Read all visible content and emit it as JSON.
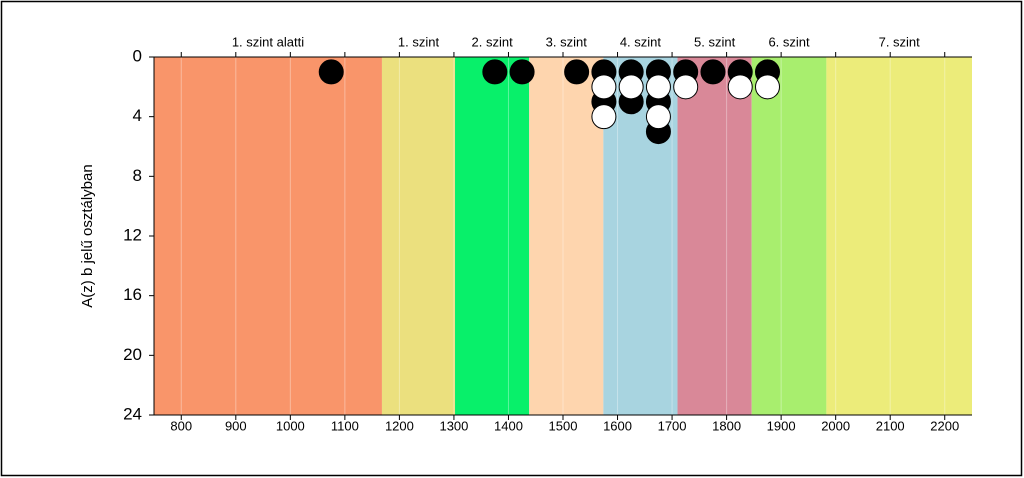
{
  "chart_data": {
    "type": "dot",
    "y_label": "A(z) b jelű osztályban",
    "xlim": [
      750,
      2250
    ],
    "ylim": [
      0,
      24
    ],
    "xticks": [
      800,
      900,
      1000,
      1100,
      1200,
      1300,
      1400,
      1500,
      1600,
      1700,
      1800,
      1900,
      2000,
      2100,
      2200
    ],
    "yticks": [
      0,
      4,
      8,
      12,
      16,
      20,
      24
    ],
    "y_inverted": true,
    "bands": [
      {
        "label": "1. szint alatti",
        "from": 750,
        "to": 1168,
        "color": "#f9956a"
      },
      {
        "label": "1. szint",
        "from": 1168,
        "to": 1302,
        "color": "#ebe07e"
      },
      {
        "label": "2. szint",
        "from": 1302,
        "to": 1438,
        "color": "#08f06a"
      },
      {
        "label": "3. szint",
        "from": 1438,
        "to": 1574,
        "color": "#fed5ae"
      },
      {
        "label": "4. szint",
        "from": 1574,
        "to": 1710,
        "color": "#a8d4e0"
      },
      {
        "label": "5. szint",
        "from": 1710,
        "to": 1846,
        "color": "#d98898"
      },
      {
        "label": "6. szint",
        "from": 1846,
        "to": 1983,
        "color": "#a8ee6e"
      },
      {
        "label": "7. szint",
        "from": 1983,
        "to": 2250,
        "color": "#ecec7a"
      }
    ],
    "series": [
      {
        "color": "#000000",
        "x": [
          1075,
          1375,
          1425,
          1525,
          1575,
          1575,
          1625,
          1625,
          1675,
          1675,
          1675,
          1725,
          1775,
          1825,
          1875
        ],
        "values": [
          1,
          1,
          1,
          1,
          1,
          3,
          1,
          3,
          1,
          3,
          5,
          1,
          1,
          1,
          1
        ]
      },
      {
        "color": "#ffffff",
        "x": [
          1575,
          1575,
          1625,
          1675,
          1675,
          1725,
          1825,
          1875
        ],
        "values": [
          2,
          4,
          2,
          2,
          4,
          2,
          2,
          2
        ]
      }
    ]
  }
}
